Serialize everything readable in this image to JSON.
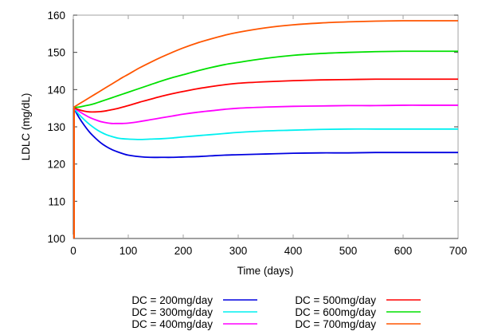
{
  "chart_data": {
    "type": "line",
    "title": "",
    "xlabel": "Time (days)",
    "ylabel": "LDLC (mg/dL)",
    "xlim": [
      0,
      700
    ],
    "ylim": [
      100,
      160
    ],
    "xticks": [
      0,
      100,
      200,
      300,
      400,
      500,
      600,
      700
    ],
    "yticks": [
      100,
      110,
      120,
      130,
      140,
      150,
      160
    ],
    "grid": false,
    "legend_position": "bottom",
    "initial_spike": {
      "x": 0,
      "from": 100,
      "to": 135.2,
      "color": "#ff5500"
    },
    "x": [
      0,
      10,
      20,
      30,
      40,
      50,
      60,
      70,
      80,
      90,
      100,
      120,
      140,
      160,
      180,
      200,
      225,
      250,
      275,
      300,
      350,
      400,
      450,
      500,
      550,
      600,
      650,
      700
    ],
    "series": [
      {
        "name": "DC = 200mg/day",
        "color": "#0000e0",
        "values": [
          135.2,
          132.6,
          130.4,
          128.5,
          127.0,
          125.7,
          124.7,
          123.9,
          123.3,
          122.8,
          122.4,
          122.0,
          121.8,
          121.8,
          121.8,
          121.9,
          122.0,
          122.2,
          122.4,
          122.5,
          122.7,
          122.9,
          123.0,
          123.0,
          123.1,
          123.1,
          123.1,
          123.1
        ]
      },
      {
        "name": "DC = 300mg/day",
        "color": "#00f0f0",
        "values": [
          135.2,
          133.4,
          131.9,
          130.6,
          129.5,
          128.6,
          127.9,
          127.4,
          127.0,
          126.8,
          126.7,
          126.6,
          126.7,
          126.8,
          127.0,
          127.3,
          127.6,
          127.9,
          128.2,
          128.5,
          128.9,
          129.1,
          129.3,
          129.4,
          129.4,
          129.4,
          129.4,
          129.4
        ]
      },
      {
        "name": "DC = 400mg/day",
        "color": "#ff00ff",
        "values": [
          135.2,
          134.2,
          133.3,
          132.5,
          131.9,
          131.4,
          131.1,
          130.9,
          130.9,
          130.9,
          131.0,
          131.4,
          131.9,
          132.4,
          132.9,
          133.4,
          133.9,
          134.3,
          134.7,
          135.0,
          135.3,
          135.5,
          135.6,
          135.7,
          135.7,
          135.8,
          135.8,
          135.8
        ]
      },
      {
        "name": "DC = 500mg/day",
        "color": "#ff0000",
        "values": [
          135.2,
          134.6,
          134.2,
          134.0,
          134.0,
          134.1,
          134.3,
          134.6,
          134.9,
          135.3,
          135.7,
          136.6,
          137.4,
          138.2,
          138.9,
          139.5,
          140.2,
          140.8,
          141.3,
          141.7,
          142.1,
          142.4,
          142.6,
          142.7,
          142.8,
          142.8,
          142.8,
          142.8
        ]
      },
      {
        "name": "DC = 600mg/day",
        "color": "#00e000",
        "values": [
          135.2,
          135.3,
          135.6,
          135.9,
          136.3,
          136.8,
          137.3,
          137.8,
          138.3,
          138.8,
          139.3,
          140.3,
          141.3,
          142.3,
          143.2,
          144.0,
          145.0,
          145.9,
          146.7,
          147.3,
          148.4,
          149.2,
          149.7,
          150.0,
          150.2,
          150.3,
          150.3,
          150.3
        ]
      },
      {
        "name": "DC = 700mg/day",
        "color": "#ff5500",
        "values": [
          135.2,
          136.1,
          137.0,
          137.9,
          138.8,
          139.7,
          140.6,
          141.5,
          142.4,
          143.3,
          144.1,
          145.8,
          147.3,
          148.7,
          150.0,
          151.2,
          152.5,
          153.6,
          154.6,
          155.4,
          156.6,
          157.4,
          157.9,
          158.2,
          158.4,
          158.5,
          158.5,
          158.5
        ]
      }
    ]
  }
}
